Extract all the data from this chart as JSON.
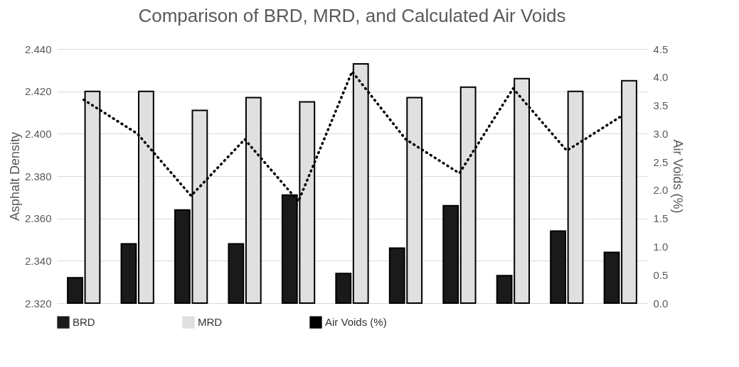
{
  "chart_data": {
    "type": "bar",
    "title": "Comparison of BRD, MRD, and Calculated Air Voids",
    "ylabel": "Asphalt Density",
    "y2label": "Air Voids (%)",
    "categories": [
      null,
      null,
      null,
      null,
      null,
      null,
      null,
      null,
      null,
      null,
      null
    ],
    "series": [
      {
        "name": "BRD",
        "color": "#1a1a1a",
        "values": [
          2.332,
          2.348,
          2.364,
          2.348,
          2.371,
          2.334,
          2.346,
          2.366,
          2.333,
          2.354,
          2.344
        ]
      },
      {
        "name": "MRD",
        "color": "#e0e0e0",
        "values": [
          2.42,
          2.42,
          2.411,
          2.417,
          2.415,
          2.433,
          2.417,
          2.422,
          2.426,
          2.42,
          2.425
        ]
      },
      {
        "name": "Air Voids (%)",
        "type": "line",
        "axis": "y2",
        "color": "#000000",
        "line_style": "dotted",
        "values": [
          3.6,
          3.0,
          1.9,
          2.9,
          1.8,
          4.1,
          2.9,
          2.3,
          3.8,
          2.7,
          3.3
        ]
      }
    ],
    "ylim": [
      2.32,
      2.44
    ],
    "yticks": [
      {
        "value": 2.32,
        "label": "2.320"
      },
      {
        "value": 2.34,
        "label": "2.340"
      },
      {
        "value": 2.36,
        "label": "2.360"
      },
      {
        "value": 2.38,
        "label": "2.380"
      },
      {
        "value": 2.4,
        "label": "2.400"
      },
      {
        "value": 2.42,
        "label": "2.420"
      },
      {
        "value": 2.44,
        "label": "2.440"
      }
    ],
    "y2lim": [
      0,
      4.5
    ],
    "y2ticks": [
      {
        "value": 0,
        "label": "0.0"
      },
      0.5,
      {
        "value": 1,
        "label": "1.0"
      },
      1.5,
      {
        "value": 2,
        "label": "2.0"
      },
      2.5,
      {
        "value": 3,
        "label": "3.0"
      },
      3.5,
      {
        "value": 4,
        "label": "4.0"
      },
      4.5
    ],
    "grid": "y",
    "legend": "bottom"
  }
}
